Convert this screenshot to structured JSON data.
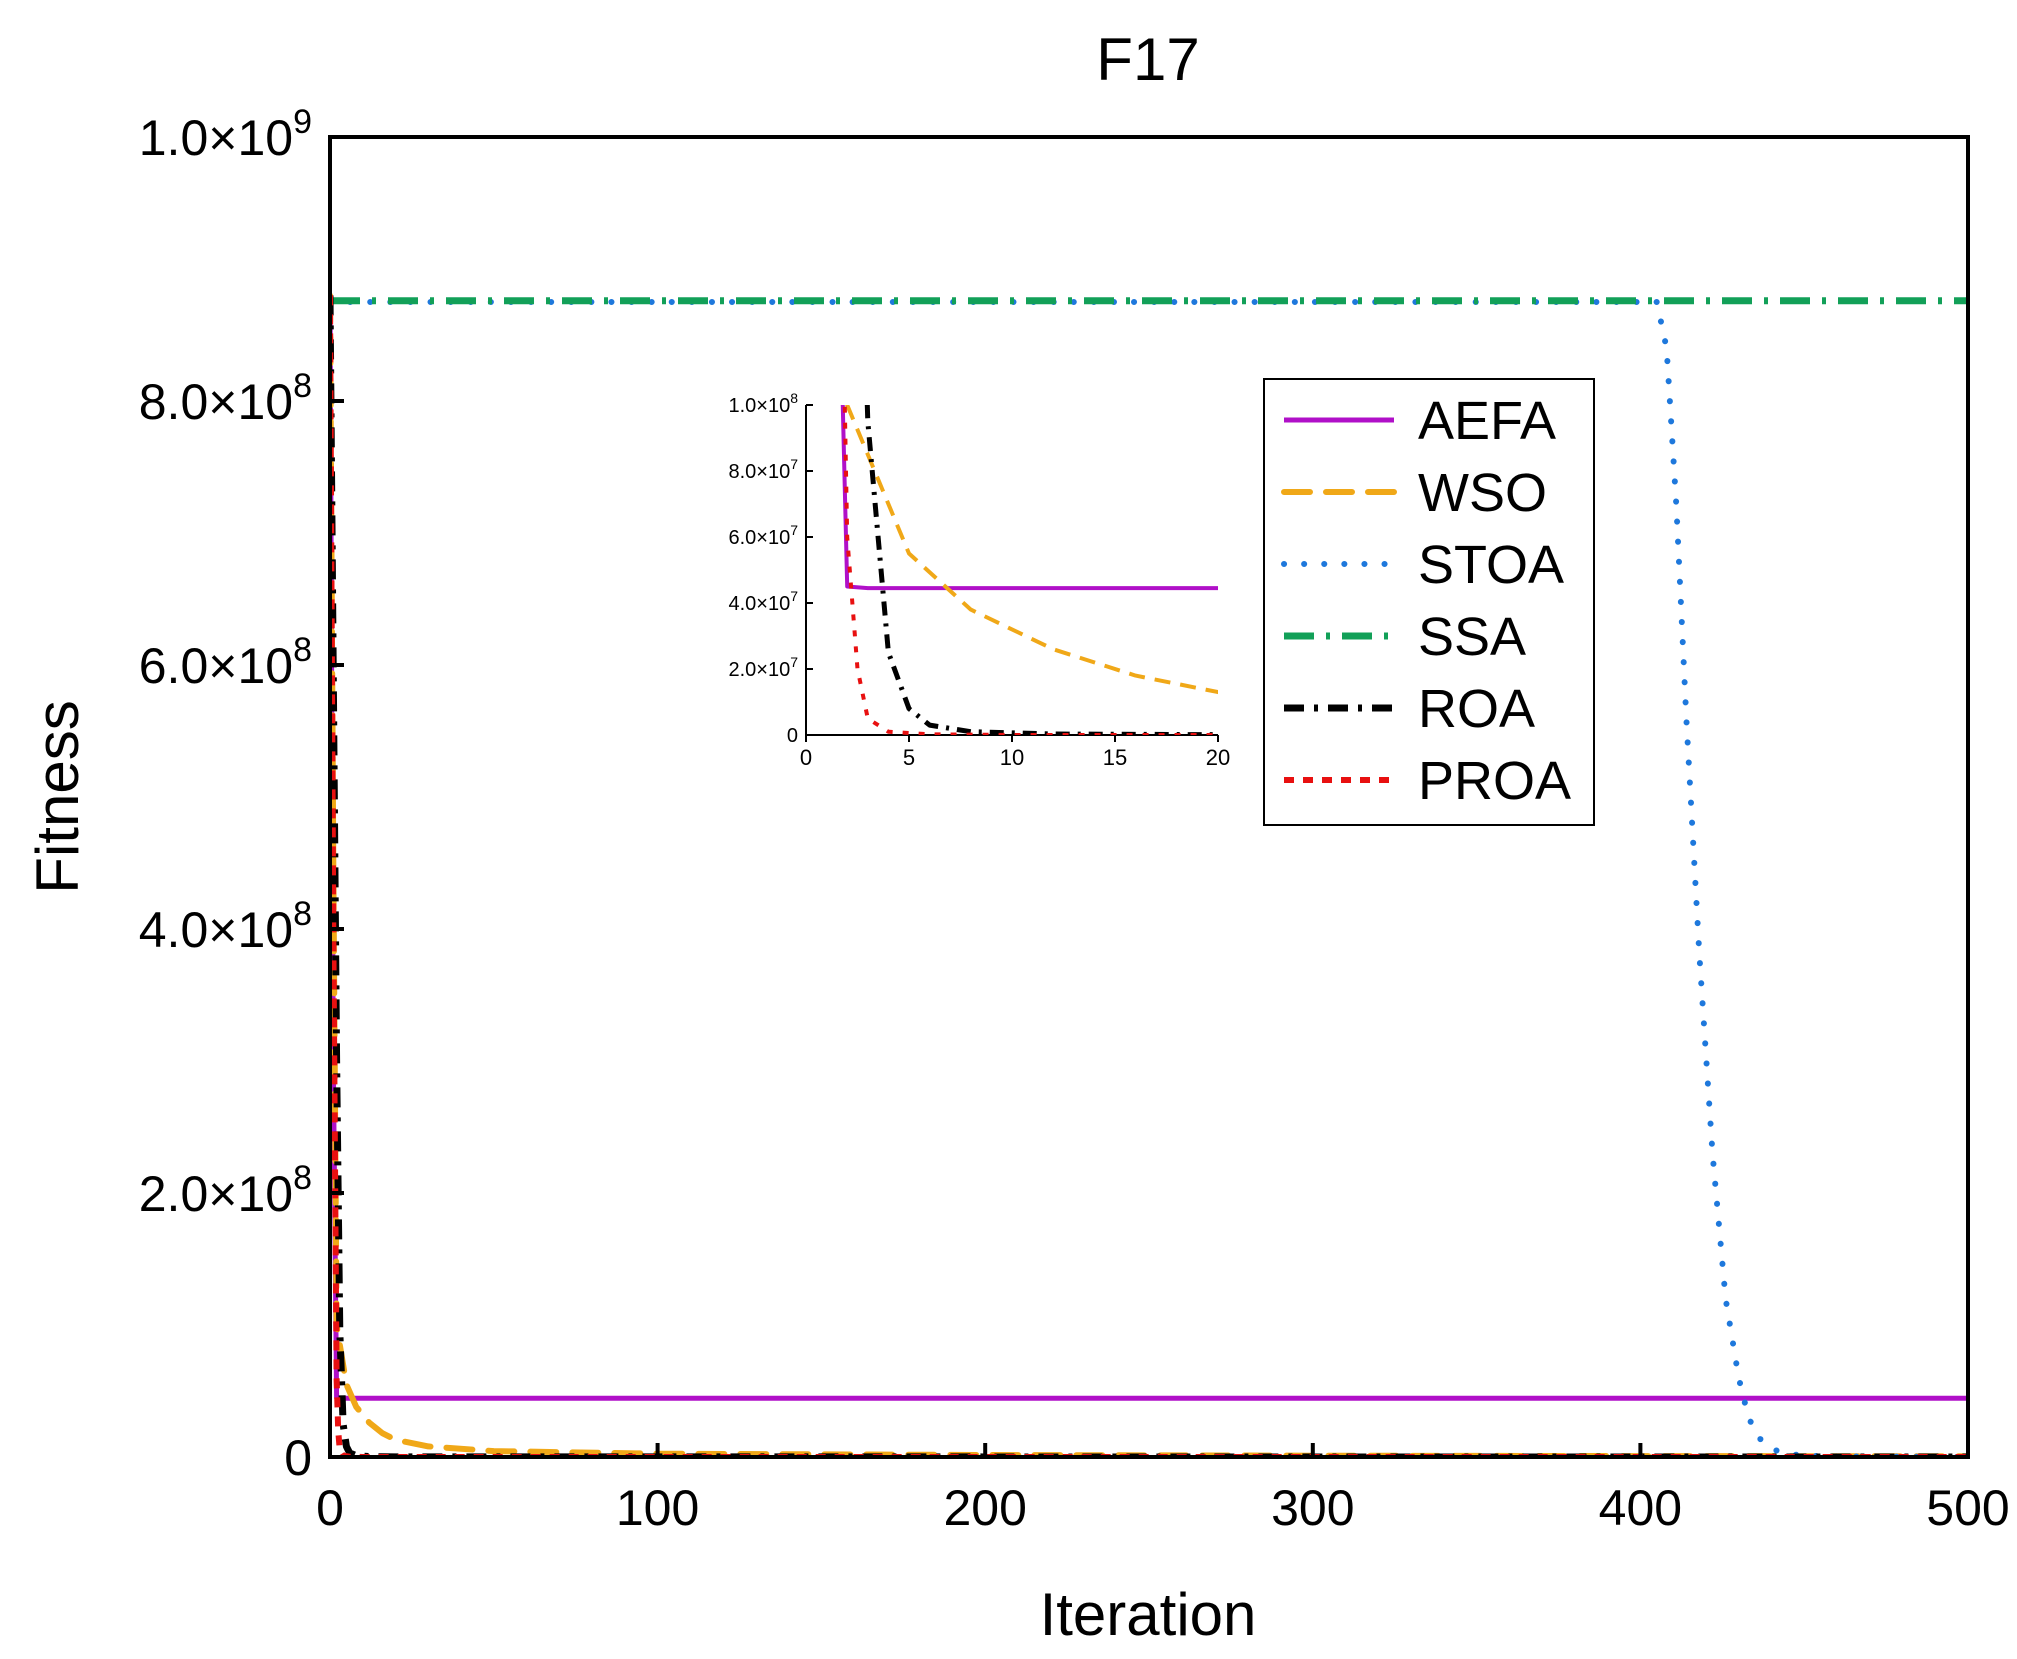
{
  "chart_data": {
    "type": "line",
    "title": "F17",
    "xlabel": "Iteration",
    "ylabel": "Fitness",
    "xlim": [
      0,
      500
    ],
    "ylim": [
      0,
      1000000000
    ],
    "grid": false,
    "legend_position": "top-right",
    "x_ticks": [
      {
        "value": 0,
        "label": "0"
      },
      {
        "value": 100,
        "label": "100"
      },
      {
        "value": 200,
        "label": "200"
      },
      {
        "value": 300,
        "label": "300"
      },
      {
        "value": 400,
        "label": "400"
      },
      {
        "value": 500,
        "label": "500"
      }
    ],
    "y_ticks": [
      {
        "value": 0,
        "label": "0"
      },
      {
        "value": 200000000,
        "mantissa": "2.0×10",
        "exp": "8"
      },
      {
        "value": 400000000,
        "mantissa": "4.0×10",
        "exp": "8"
      },
      {
        "value": 600000000,
        "mantissa": "6.0×10",
        "exp": "8"
      },
      {
        "value": 800000000,
        "mantissa": "8.0×10",
        "exp": "8"
      },
      {
        "value": 1000000000,
        "mantissa": "1.0×10",
        "exp": "9"
      }
    ],
    "series": [
      {
        "name": "AEFA",
        "color": "#b010c8",
        "style": "solid",
        "x": [
          0,
          1,
          2,
          3,
          500
        ],
        "y": [
          880000000,
          300000000,
          45000000,
          44500000,
          44500000
        ]
      },
      {
        "name": "WSO",
        "color": "#f0a818",
        "style": "dash",
        "x": [
          0,
          1,
          2,
          3,
          5,
          8,
          12,
          16,
          20,
          30,
          50,
          100,
          200,
          300,
          400,
          500
        ],
        "y": [
          880000000,
          450000000,
          100000000,
          85000000,
          55000000,
          38000000,
          26000000,
          18000000,
          13000000,
          8000000,
          4500000,
          2500000,
          1500000,
          1000000,
          700000,
          500000
        ]
      },
      {
        "name": "STOA",
        "color": "#1e78dc",
        "style": "dot",
        "x": [
          0,
          405,
          408,
          411,
          414,
          418,
          422,
          426,
          430,
          433,
          436,
          440,
          446,
          455,
          500
        ],
        "y": [
          875000000,
          875000000,
          840000000,
          720000000,
          560000000,
          380000000,
          230000000,
          120000000,
          60000000,
          30000000,
          15000000,
          6000000,
          2000000,
          500000,
          0
        ]
      },
      {
        "name": "SSA",
        "color": "#12a058",
        "style": "dashdot",
        "x": [
          0,
          500
        ],
        "y": [
          876000000,
          876000000
        ]
      },
      {
        "name": "ROA",
        "color": "#000000",
        "style": "dashdotblack",
        "x": [
          0,
          2,
          3,
          3.5,
          4,
          5,
          6,
          8,
          12,
          20,
          500
        ],
        "y": [
          880000000,
          300000000,
          95000000,
          60000000,
          25000000,
          8000000,
          3000000,
          1000000,
          300000,
          100000,
          0
        ]
      },
      {
        "name": "PROA",
        "color": "#e81010",
        "style": "shortdash",
        "x": [
          0,
          1,
          2,
          2.5,
          3,
          4,
          6,
          10,
          500
        ],
        "y": [
          880000000,
          400000000,
          60000000,
          20000000,
          5000000,
          1000000,
          200000,
          0,
          0
        ]
      }
    ],
    "inset": {
      "xlim": [
        0,
        20
      ],
      "ylim": [
        0,
        100000000
      ],
      "x_ticks": [
        {
          "value": 0,
          "label": "0"
        },
        {
          "value": 5,
          "label": "5"
        },
        {
          "value": 10,
          "label": "10"
        },
        {
          "value": 15,
          "label": "15"
        },
        {
          "value": 20,
          "label": "20"
        }
      ],
      "y_ticks": [
        {
          "value": 0,
          "label": "0"
        },
        {
          "value": 20000000,
          "mantissa": "2.0×10",
          "exp": "7"
        },
        {
          "value": 40000000,
          "mantissa": "4.0×10",
          "exp": "7"
        },
        {
          "value": 60000000,
          "mantissa": "6.0×10",
          "exp": "7"
        },
        {
          "value": 80000000,
          "mantissa": "8.0×10",
          "exp": "7"
        },
        {
          "value": 100000000,
          "mantissa": "1.0×10",
          "exp": "8"
        }
      ]
    }
  }
}
